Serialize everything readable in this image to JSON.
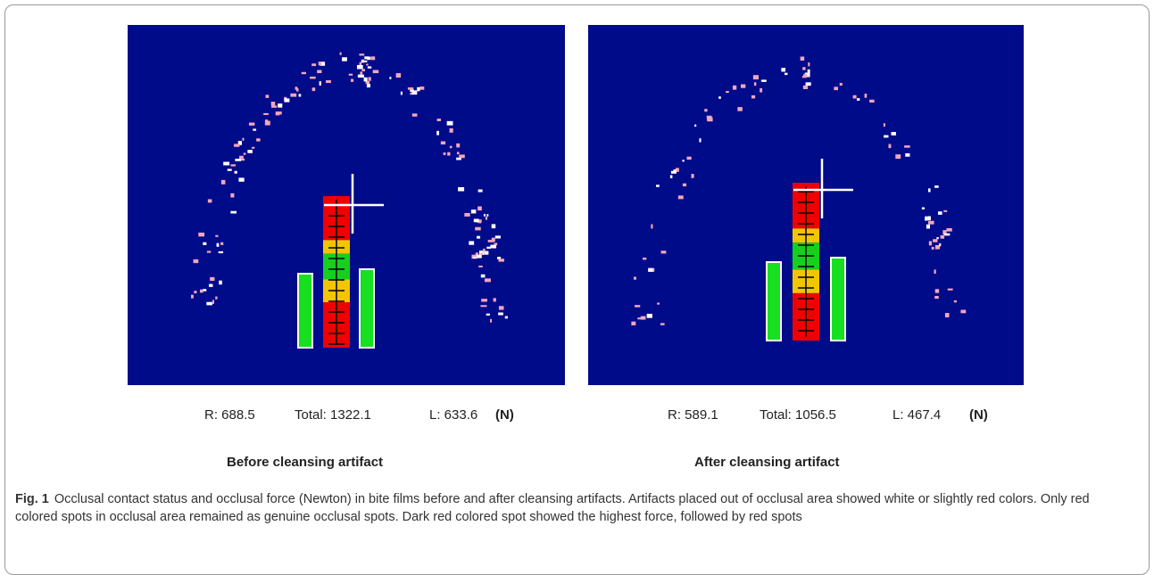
{
  "panels": [
    {
      "r": "R: 688.5",
      "total": "Total: 1322.1",
      "l": "L: 633.6",
      "unit": "(N)",
      "title": "Before cleansing artifact"
    },
    {
      "r": "R: 589.1",
      "total": "Total: 1056.5",
      "l": "L: 467.4",
      "unit": "(N)",
      "title": "After cleansing artifact"
    }
  ],
  "caption": {
    "label": "Fig. 1",
    "text": "Occlusal contact status and occlusal force (Newton) in bite films before and after cleansing artifacts. Artifacts placed out of occlusal area showed white or slightly red colors. Only red colored spots in occlusal area remained as genuine occlusal spots. Dark red colored spot showed the highest force, followed by red spots"
  }
}
